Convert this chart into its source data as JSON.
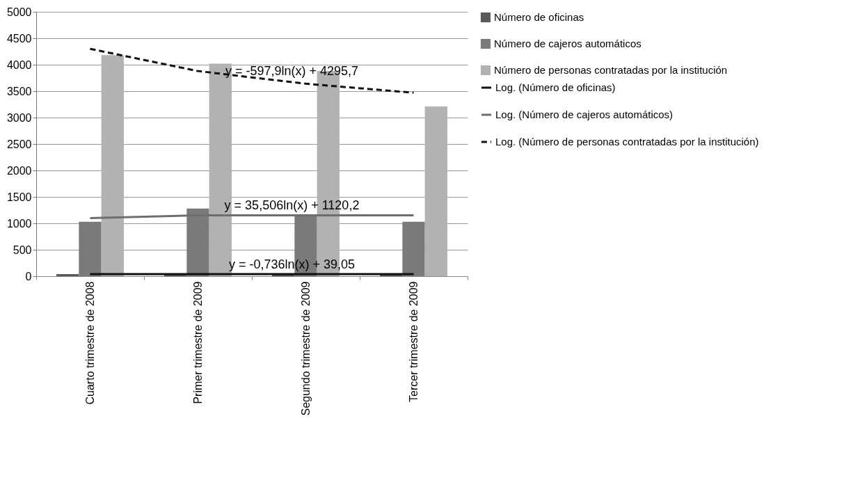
{
  "chart_data": {
    "type": "bar",
    "categories": [
      "Cuarto trimestre de 2008",
      "Primer trimestre de 2009",
      "Segundo trimestre de 2009",
      "Tercer trimestre de 2009"
    ],
    "series": [
      {
        "name": "Número de oficinas",
        "color": "#5a5a5a",
        "values": [
          40,
          40,
          40,
          40
        ]
      },
      {
        "name": "Número de cajeros automáticos",
        "color": "#7a7a7a",
        "values": [
          1030,
          1280,
          1150,
          1030
        ]
      },
      {
        "name": "Número de personas contratadas por la institución",
        "color": "#b2b2b2",
        "values": [
          4180,
          4020,
          3880,
          3210
        ]
      },
      {
        "name": "Log. (Número de oficinas)",
        "type": "line",
        "color": "#111111",
        "line_style": "solid",
        "values": [
          40,
          40,
          40,
          40
        ]
      },
      {
        "name": "Log. (Número de cajeros automáticos)",
        "type": "line",
        "color": "#6e6e6e",
        "line_style": "solid",
        "values": [
          1100,
          1150,
          1150,
          1150
        ]
      },
      {
        "name": "Log. (Número de personas contratadas por la institución)",
        "type": "line",
        "color": "#111111",
        "line_style": "dashed",
        "values": [
          4300,
          3880,
          3640,
          3470
        ]
      }
    ],
    "ylim": [
      0,
      5000
    ],
    "yticks": [
      0,
      500,
      1000,
      1500,
      2000,
      2500,
      3000,
      3500,
      4000,
      4500,
      5000
    ],
    "grid": "y",
    "legend": "right",
    "marker": "none",
    "annotations": [
      {
        "text": "y = -597,9ln(x) + 4295,7",
        "x": "Segundo trimestre de 2009",
        "y": 3700
      },
      {
        "text": "y = 35,506ln(x) + 1120,2",
        "x": "Segundo trimestre de 2009",
        "y": 1160
      },
      {
        "text": "y = -0,736ln(x) + 39,05",
        "x": "Segundo trimestre de 2009",
        "y": 38
      }
    ]
  }
}
